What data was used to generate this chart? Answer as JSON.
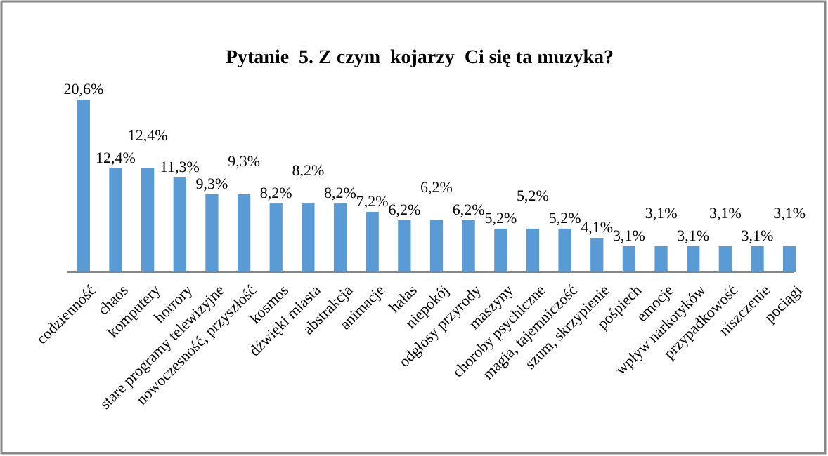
{
  "chart_data": {
    "type": "bar",
    "title": "Pytanie  5. Z czym  kojarzy  Ci się ta muzyka?",
    "categories": [
      "codzienność",
      "chaos",
      "komputery",
      "horrory",
      "stare programy telewizyjne",
      "nowoczesność, przyszłość",
      "kosmos",
      "dźwięki miasta",
      "abstrakcja",
      "animacje",
      "hałas",
      "niepokój",
      "odgłosy przyrody",
      "maszyny",
      "choroby psychiczne",
      "magia, tajemniczość",
      "szum, skrzypienie",
      "pośpiech",
      "emocje",
      "wpływ narkotyków",
      "przypadkowość",
      "niszczenie",
      "pociągi"
    ],
    "values": [
      20.6,
      12.4,
      12.4,
      11.3,
      9.3,
      9.3,
      8.2,
      8.2,
      8.2,
      7.2,
      6.2,
      6.2,
      6.2,
      5.2,
      5.2,
      5.2,
      4.1,
      3.1,
      3.1,
      3.1,
      3.1,
      3.1,
      3.1
    ],
    "value_labels": [
      "20,6%",
      "12,4%",
      "12,4%",
      "11,3%",
      "9,3%",
      "9,3%",
      "8,2%",
      "8,2%",
      "8,2%",
      "7,2%",
      "6,2%",
      "6,2%",
      "6,2%",
      "5,2%",
      "5,2%",
      "5,2%",
      "4,1%",
      "3,1%",
      "3,1%",
      "3,1%",
      "3,1%",
      "3,1%",
      "3,1%"
    ],
    "color": "#5b9bd5"
  }
}
